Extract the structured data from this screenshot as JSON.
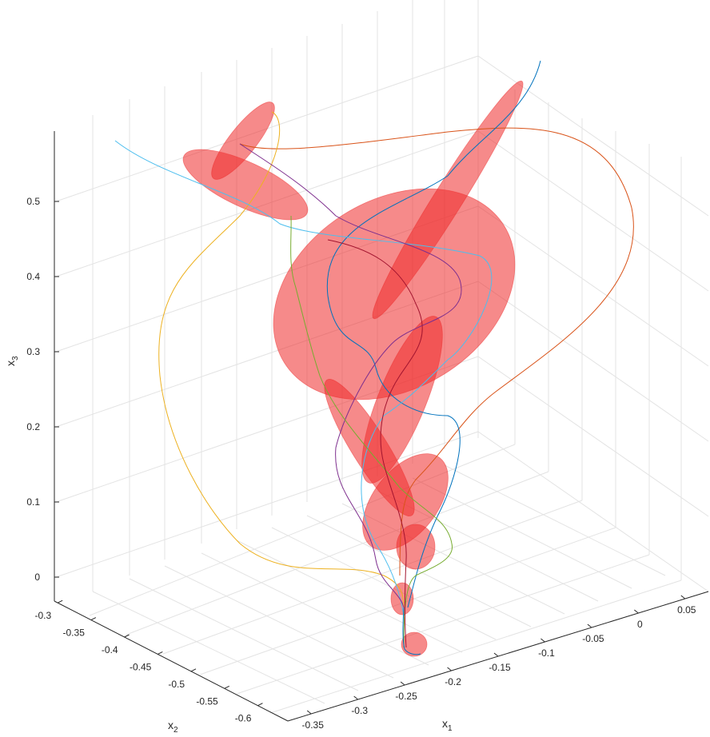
{
  "chart_data": {
    "type": "3d-line-with-ellipsoids",
    "title": "",
    "axes": {
      "x1": {
        "label": "x",
        "label_sub": "1",
        "ticks": [
          "-0.35",
          "-0.3",
          "-0.25",
          "-0.2",
          "-0.15",
          "-0.1",
          "-0.05",
          "0",
          "0.05"
        ],
        "tick_values": [
          -0.35,
          -0.3,
          -0.25,
          -0.2,
          -0.15,
          -0.1,
          -0.05,
          0,
          0.05
        ],
        "range": [
          -0.375,
          0.075
        ]
      },
      "x2": {
        "label": "x",
        "label_sub": "2",
        "ticks": [
          "-0.3",
          "-0.35",
          "-0.4",
          "-0.45",
          "-0.5",
          "-0.55",
          "-0.6"
        ],
        "tick_values": [
          -0.3,
          -0.35,
          -0.4,
          -0.45,
          -0.5,
          -0.55,
          -0.6
        ],
        "range": [
          -0.295,
          -0.645
        ]
      },
      "x3": {
        "label": "x",
        "label_sub": "3",
        "ticks": [
          "0",
          "0.1",
          "0.2",
          "0.3",
          "0.4",
          "0.5"
        ],
        "tick_values": [
          0,
          0.1,
          0.2,
          0.3,
          0.4,
          0.5
        ],
        "range": [
          -0.03,
          0.59
        ]
      }
    },
    "grid": true,
    "ellipsoid_color": "#ee2a2a",
    "series": [
      {
        "color": "#0072bd"
      },
      {
        "color": "#d95319"
      },
      {
        "color": "#edb120"
      },
      {
        "color": "#7e2f8e"
      },
      {
        "color": "#77ac30"
      },
      {
        "color": "#4dbeee"
      },
      {
        "color": "#a2142f"
      }
    ]
  }
}
